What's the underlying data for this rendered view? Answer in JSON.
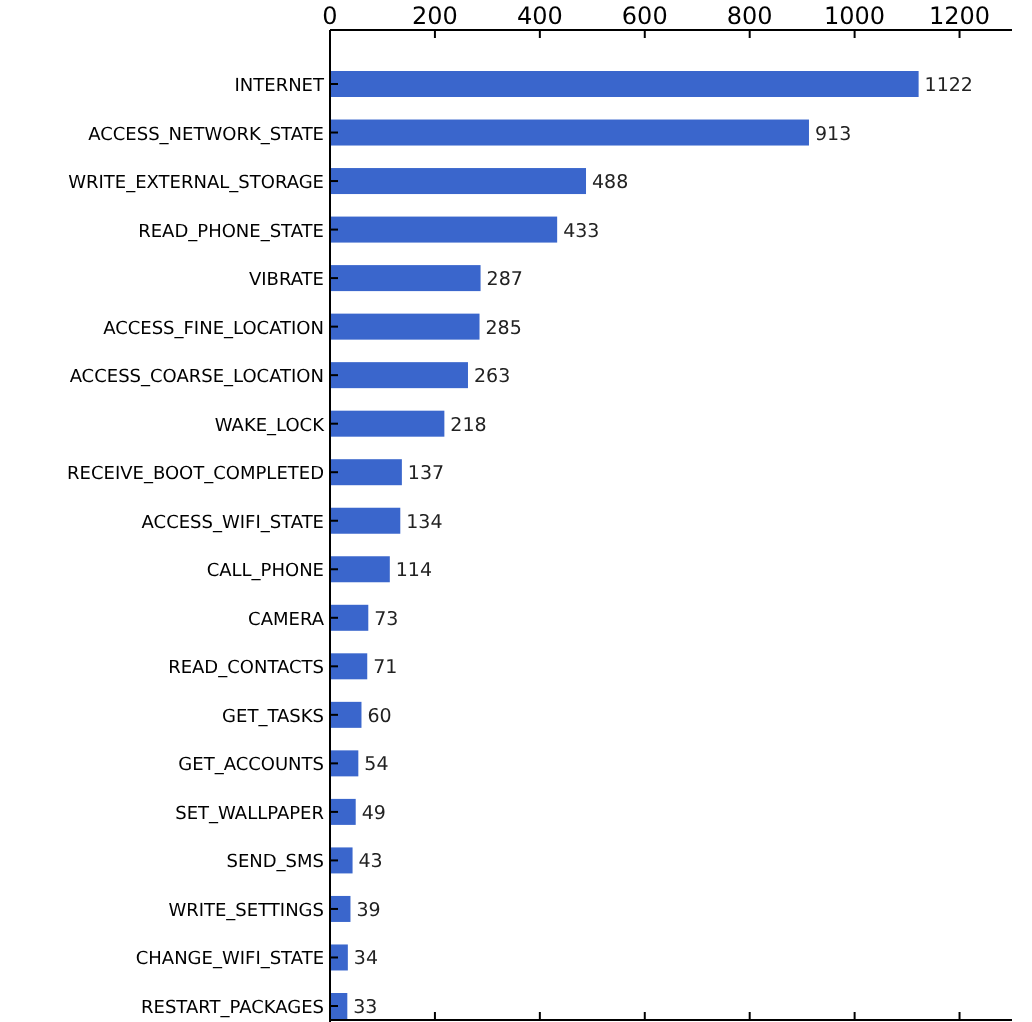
{
  "chart_data": {
    "type": "bar",
    "orientation": "horizontal",
    "categories": [
      "INTERNET",
      "ACCESS_NETWORK_STATE",
      "WRITE_EXTERNAL_STORAGE",
      "READ_PHONE_STATE",
      "VIBRATE",
      "ACCESS_FINE_LOCATION",
      "ACCESS_COARSE_LOCATION",
      "WAKE_LOCK",
      "RECEIVE_BOOT_COMPLETED",
      "ACCESS_WIFI_STATE",
      "CALL_PHONE",
      "CAMERA",
      "READ_CONTACTS",
      "GET_TASKS",
      "GET_ACCOUNTS",
      "SET_WALLPAPER",
      "SEND_SMS",
      "WRITE_SETTINGS",
      "CHANGE_WIFI_STATE",
      "RESTART_PACKAGES"
    ],
    "values": [
      1122,
      913,
      488,
      433,
      287,
      285,
      263,
      218,
      137,
      134,
      114,
      73,
      71,
      60,
      54,
      49,
      43,
      39,
      34,
      33
    ],
    "color": "#3a66cc",
    "xlim": [
      0,
      1300
    ],
    "xticks": [
      0,
      200,
      400,
      600,
      800,
      1000,
      1200
    ],
    "data_labels": true
  }
}
